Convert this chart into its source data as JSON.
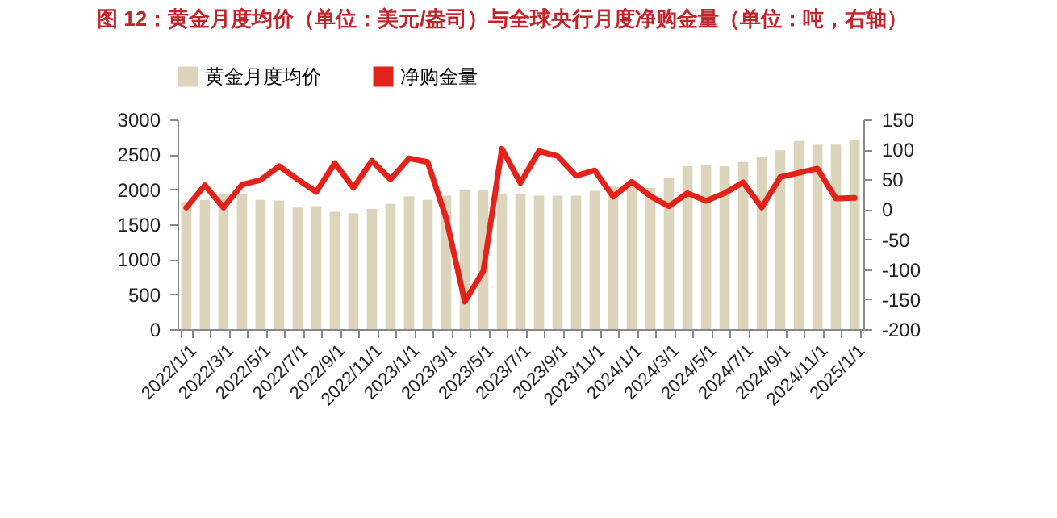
{
  "chart_data": {
    "type": "bar",
    "title": "图 12：黄金月度均价（单位：美元/盎司）与全球央行月度净购金量（单位：吨，右轴）",
    "categories": [
      "2022/1/1",
      null,
      "2022/3/1",
      null,
      "2022/5/1",
      null,
      "2022/7/1",
      null,
      "2022/9/1",
      null,
      "2022/11/1",
      null,
      "2023/1/1",
      null,
      "2023/3/1",
      null,
      "2023/5/1",
      null,
      "2023/7/1",
      null,
      "2023/9/1",
      null,
      "2023/11/1",
      null,
      "2024/1/1",
      null,
      "2024/3/1",
      null,
      "2024/5/1",
      null,
      "2024/7/1",
      null,
      "2024/9/1",
      null,
      "2024/11/1",
      null,
      "2025/1/1"
    ],
    "series": [
      {
        "name": "黄金月度均价",
        "color": "#ddd4bc",
        "values": [
          1820,
          1850,
          1940,
          1930,
          1850,
          1840,
          1740,
          1760,
          1680,
          1660,
          1720,
          1790,
          1900,
          1850,
          1910,
          2000,
          1990,
          1940,
          1940,
          1910,
          1910,
          1910,
          1980,
          2040,
          2040,
          2020,
          2160,
          2330,
          2350,
          2330,
          2390,
          2460,
          2560,
          2690,
          2640,
          2640,
          2710
        ]
      },
      {
        "name": "净购金量",
        "type": "line",
        "axis": "y2",
        "color": "#e3231b",
        "values": [
          3,
          40,
          3,
          41,
          49,
          72,
          50,
          29,
          77,
          36,
          81,
          50,
          85,
          79,
          -15,
          -154,
          -103,
          101,
          44,
          97,
          89,
          56,
          65,
          21,
          46,
          22,
          5,
          27,
          14,
          27,
          45,
          3,
          54,
          61,
          68,
          18,
          19
        ]
      }
    ],
    "ylim": [
      0,
      3000
    ],
    "yticks": [
      0,
      500,
      1000,
      1500,
      2000,
      2500,
      3000
    ],
    "y2lim": [
      -200,
      150
    ],
    "y2ticks": [
      -200,
      -150,
      -100,
      -50,
      0,
      50,
      100,
      150
    ],
    "legend": "top",
    "grid": false
  }
}
